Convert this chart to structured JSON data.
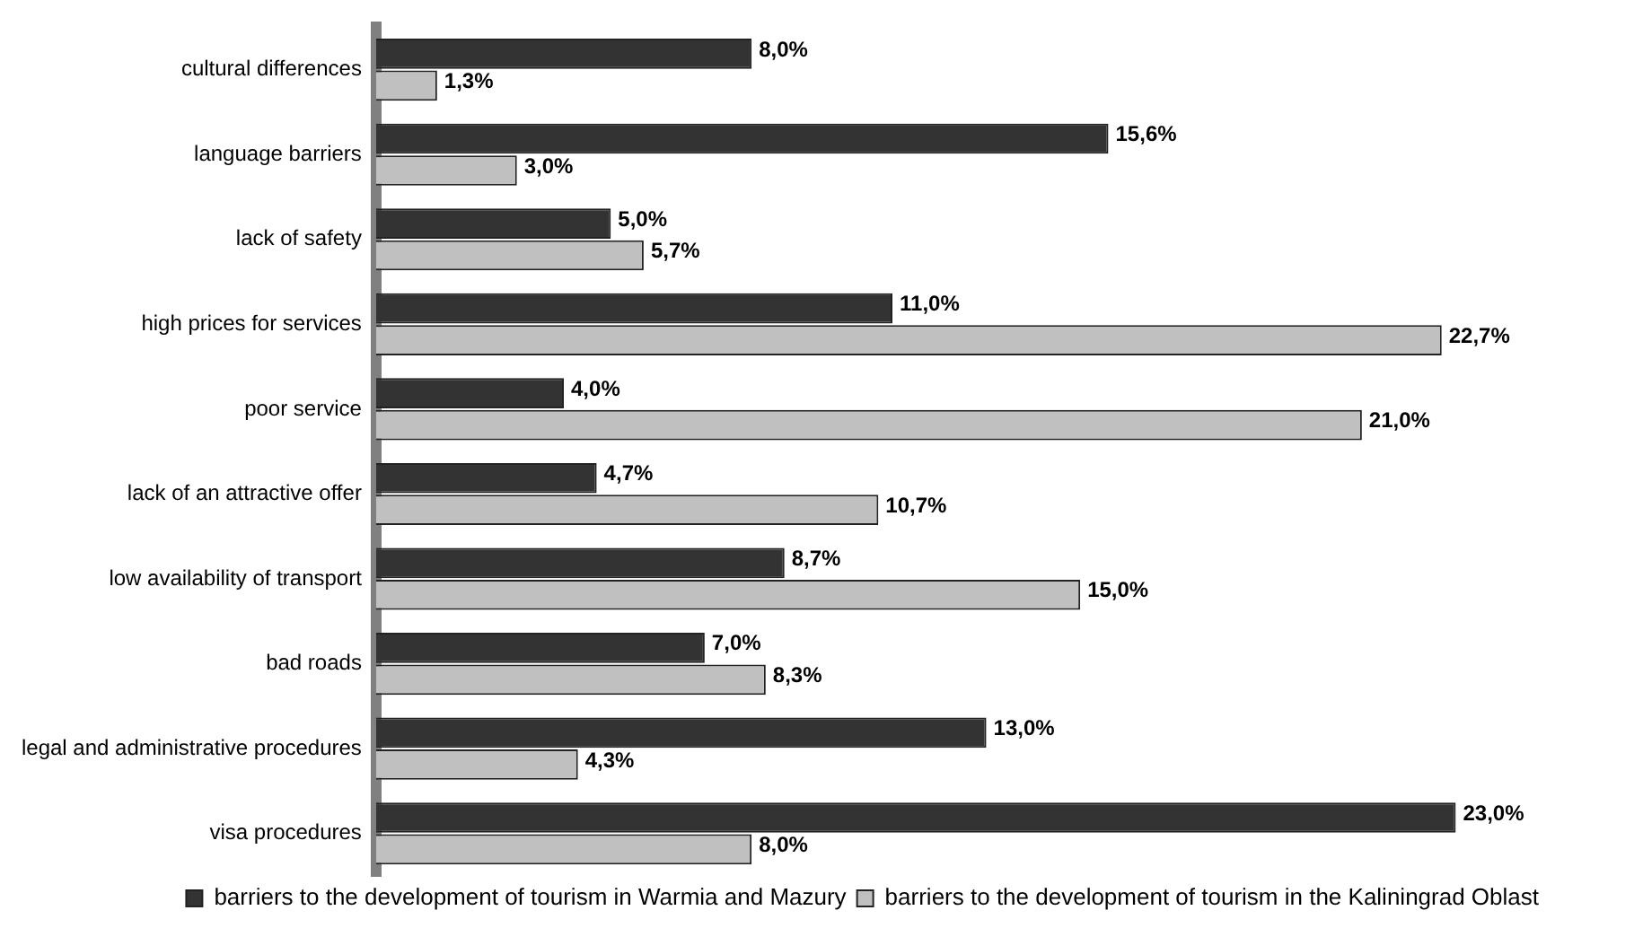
{
  "chart_data": {
    "type": "bar",
    "orientation": "horizontal",
    "categories": [
      "cultural differences",
      "language barriers",
      "lack of safety",
      "high prices for services",
      "poor service",
      "lack of an attractive offer",
      "low availability of transport",
      "bad roads",
      "legal and administrative procedures",
      "visa procedures"
    ],
    "series": [
      {
        "name": "barriers to the development of tourism in Warmia and Mazury",
        "color": "#333333",
        "values": [
          8.0,
          15.6,
          5.0,
          11.0,
          4.0,
          4.7,
          8.7,
          7.0,
          13.0,
          23.0
        ],
        "value_labels": [
          "8,0%",
          "15,6%",
          "5,0%",
          "11,0%",
          "4,0%",
          "4,7%",
          "8,7%",
          "7,0%",
          "13,0%",
          "23,0%"
        ]
      },
      {
        "name": "barriers to the development of tourism in the Kaliningrad Oblast",
        "color": "#c0c0c0",
        "values": [
          1.3,
          3.0,
          5.7,
          22.7,
          21.0,
          10.7,
          15.0,
          8.3,
          4.3,
          8.0
        ],
        "value_labels": [
          "1,3%",
          "3,0%",
          "5,7%",
          "22,7%",
          "21,0%",
          "10,7%",
          "15,0%",
          "8,3%",
          "4,3%",
          "8,0%"
        ]
      }
    ],
    "legend": "bottom"
  }
}
